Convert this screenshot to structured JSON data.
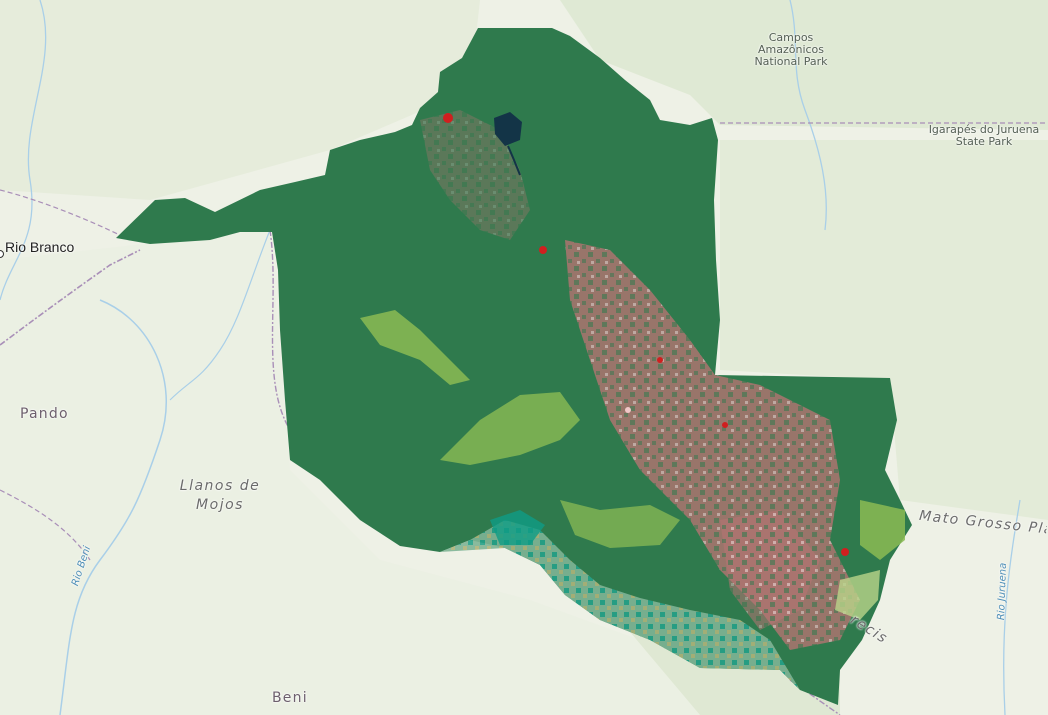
{
  "colors": {
    "basemap": "#eef1e6",
    "forest": "#2f7a4d",
    "pasture": "#b77373",
    "agriculture_light": "#c7a1a1",
    "savanna": "#8bbb54",
    "wetland": "#0f9c86",
    "grassland": "#7fb495",
    "urban": "#d01f1f",
    "water": "#133447",
    "river_line": "#a9cfe8",
    "border_line": "#a98fb8"
  },
  "labels": {
    "campos": "Campos\nAmazônicos\nNational Park",
    "igarapes": "Igarapés do Juruena\nState Park",
    "rio_branco": "Rio Branco",
    "pando": "Pando",
    "llanos": "Llanos de\nMojos",
    "mato_grosso": "Mato Grosso Pla",
    "rio_beni": "Rio Beni",
    "rio_juruena": "Rio Juruena",
    "beni": "Beni",
    "parecis": "recis"
  },
  "icons": {
    "city_marker": "city-dot-icon"
  }
}
